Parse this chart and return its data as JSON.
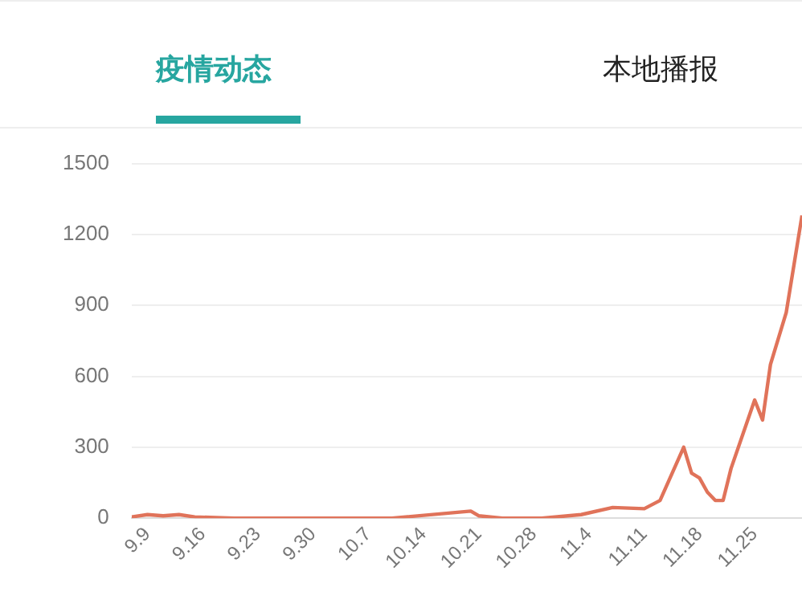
{
  "chart_data": {
    "type": "line",
    "annotations": [
      "疫情动态",
      "本地播报"
    ],
    "x": [
      "--09-07",
      "--09-09",
      "--09-11",
      "--09-13",
      "--09-15",
      "--09-20",
      "--09-30",
      "--10-10",
      "--10-20",
      "--10-21",
      "--10-24",
      "--10-29",
      "--11-03",
      "--11-07",
      "--11-11",
      "--11-13",
      "--11-16",
      "--11-17",
      "--11-18",
      "--11-19",
      "--11-20",
      "--11-21",
      "--11-22",
      "--11-25",
      "--11-26",
      "--11-27",
      "--11-29",
      "--12-01"
    ],
    "series": [
      {
        "color": "#e0735a",
        "values": [
          5,
          15,
          10,
          15,
          5,
          0,
          0,
          0,
          30,
          10,
          0,
          0,
          15,
          45,
          40,
          75,
          300,
          190,
          170,
          110,
          75,
          75,
          210,
          500,
          415,
          650,
          870,
          1280
        ]
      }
    ],
    "xlim": [
      "--09-07",
      "--12-01"
    ],
    "xticks": [
      {
        "value": "--09-09",
        "label": "9.9"
      },
      {
        "value": "--09-16",
        "label": "9.16"
      },
      {
        "value": "--09-23",
        "label": "9.23"
      },
      {
        "value": "--09-30",
        "label": "9.30"
      },
      {
        "value": "--10-07",
        "label": "10.7"
      },
      {
        "value": "--10-14",
        "label": "10.14"
      },
      {
        "value": "--10-21",
        "label": "10.21"
      },
      {
        "value": "--10-28",
        "label": "10.28"
      },
      {
        "value": "--11-04",
        "label": "11.4"
      },
      {
        "value": "--11-11",
        "label": "11.11"
      },
      {
        "value": "--11-18",
        "label": "11.18"
      },
      {
        "value": "--11-25",
        "label": "11.25"
      }
    ],
    "ylim": [
      0,
      1500
    ],
    "yticks": [
      0,
      300,
      600,
      900,
      1200,
      1500
    ],
    "grid": "y",
    "legend": false,
    "marker": "none",
    "line_style": "solid"
  }
}
